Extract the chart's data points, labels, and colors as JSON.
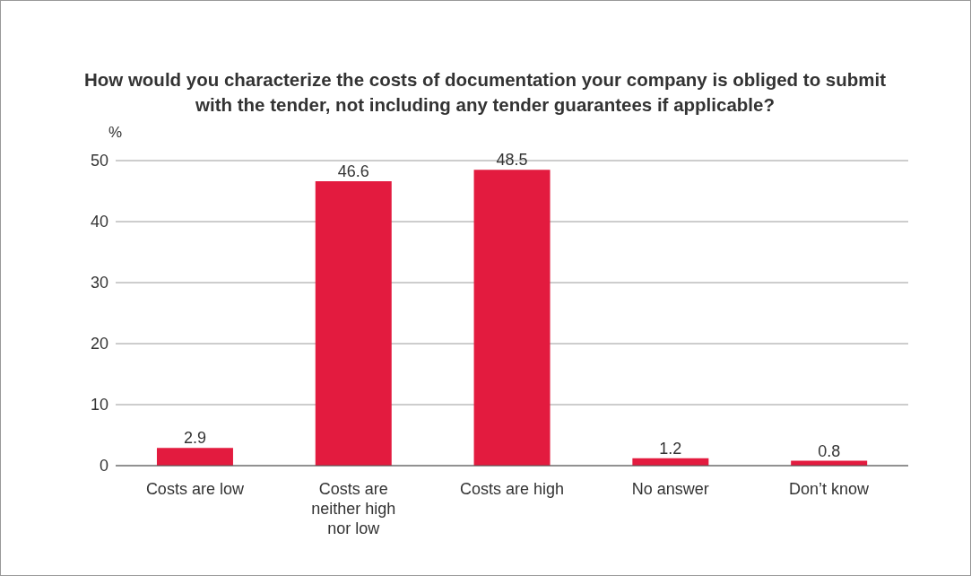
{
  "chart_data": {
    "type": "bar",
    "title": "How would you characterize the costs of documentation your company is obliged to submit with the tender, not including any tender guarantees if applicable?",
    "ylabel": "%",
    "categories": [
      "Costs are low",
      "Costs are neither high nor low",
      "Costs are high",
      "No answer",
      "Don’t know"
    ],
    "values": [
      2.9,
      46.6,
      48.5,
      1.2,
      0.8
    ],
    "color": "#e31b3f",
    "ylim": [
      0,
      50
    ],
    "yticks": [
      0,
      10,
      20,
      30,
      40,
      50
    ],
    "grid": "y",
    "data_labels": true
  }
}
